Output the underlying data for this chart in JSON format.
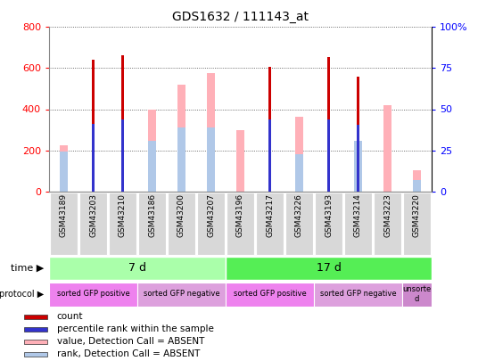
{
  "title": "GDS1632 / 111143_at",
  "samples": [
    "GSM43189",
    "GSM43203",
    "GSM43210",
    "GSM43186",
    "GSM43200",
    "GSM43207",
    "GSM43196",
    "GSM43217",
    "GSM43226",
    "GSM43193",
    "GSM43214",
    "GSM43223",
    "GSM43220"
  ],
  "count_values": [
    0,
    640,
    660,
    0,
    0,
    0,
    0,
    605,
    0,
    655,
    560,
    0,
    0
  ],
  "percentile_values": [
    0,
    330,
    350,
    0,
    0,
    0,
    0,
    350,
    0,
    350,
    325,
    0,
    0
  ],
  "absent_value": [
    225,
    0,
    0,
    400,
    520,
    575,
    300,
    0,
    365,
    0,
    0,
    420,
    105
  ],
  "absent_rank": [
    195,
    0,
    0,
    245,
    310,
    310,
    0,
    0,
    180,
    0,
    245,
    0,
    55
  ],
  "ylim_left": [
    0,
    800
  ],
  "ylim_right": [
    0,
    100
  ],
  "yticks_left": [
    0,
    200,
    400,
    600,
    800
  ],
  "yticks_right": [
    0,
    25,
    50,
    75,
    100
  ],
  "count_color": "#cc0000",
  "percentile_color": "#3333cc",
  "absent_value_color": "#ffb0b8",
  "absent_rank_color": "#b0c8e8",
  "bg_color": "#ffffff",
  "time_groups": [
    {
      "label": "7 d",
      "start": 0,
      "end": 6,
      "color": "#aaffaa"
    },
    {
      "label": "17 d",
      "start": 6,
      "end": 13,
      "color": "#55ee55"
    }
  ],
  "protocol_groups": [
    {
      "label": "sorted GFP positive",
      "start": 0,
      "end": 3,
      "color": "#ee82ee"
    },
    {
      "label": "sorted GFP negative",
      "start": 3,
      "end": 6,
      "color": "#dda0dd"
    },
    {
      "label": "sorted GFP positive",
      "start": 6,
      "end": 9,
      "color": "#ee82ee"
    },
    {
      "label": "sorted GFP negative",
      "start": 9,
      "end": 12,
      "color": "#dda0dd"
    },
    {
      "label": "unsorte\nd",
      "start": 12,
      "end": 13,
      "color": "#cc88cc"
    }
  ],
  "legend_items": [
    {
      "color": "#cc0000",
      "label": "count"
    },
    {
      "color": "#3333cc",
      "label": "percentile rank within the sample"
    },
    {
      "color": "#ffb0b8",
      "label": "value, Detection Call = ABSENT"
    },
    {
      "color": "#b0c8e8",
      "label": "rank, Detection Call = ABSENT"
    }
  ]
}
